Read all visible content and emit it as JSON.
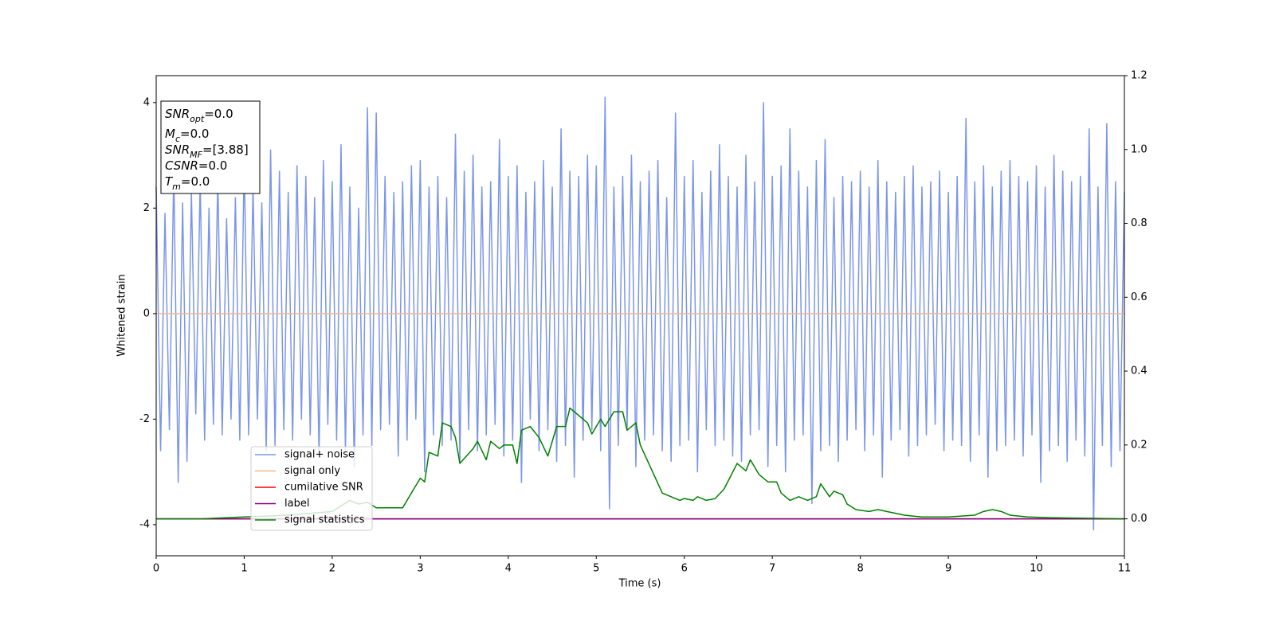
{
  "chart_data": {
    "type": "line",
    "xlabel": "Time (s)",
    "ylabel": "Whitened strain",
    "xlim": [
      0,
      11
    ],
    "xticks": [
      0,
      1,
      2,
      3,
      4,
      5,
      6,
      7,
      8,
      9,
      10,
      11
    ],
    "ylim": [
      -4.59,
      4.51
    ],
    "yticks": [
      -4,
      -2,
      0,
      2,
      4
    ],
    "y2lim": [
      -0.1,
      1.2
    ],
    "y2ticks": [
      {
        "value": 0,
        "label": "0.0"
      },
      {
        "value": 0.2,
        "label": "0.2"
      },
      {
        "value": 0.4,
        "label": "0.4"
      },
      {
        "value": 0.6,
        "label": "0.6"
      },
      {
        "value": 0.8,
        "label": "0.8"
      },
      {
        "value": 1.0,
        "label": "1.0"
      },
      {
        "value": 1.2,
        "label": "1.2"
      }
    ],
    "legend": "lower left",
    "annotation_lines": [
      {
        "base": "SNR",
        "sub": "opt",
        "rest": "=0.0"
      },
      {
        "base": "M",
        "sub": "c",
        "rest": "=0.0"
      },
      {
        "base": "SNR",
        "sub": "MF",
        "rest": "=[3.88]"
      },
      {
        "base": "CSNR",
        "rest": "=0.0"
      },
      {
        "base": "T",
        "sub": "m",
        "rest": "=0.0"
      }
    ],
    "series": [
      {
        "name": "signal+ noise",
        "color": "#7b96e8",
        "x": [
          0,
          0.05,
          0.1,
          0.15,
          0.2,
          0.25,
          0.3,
          0.35,
          0.4,
          0.45,
          0.5,
          0.55,
          0.6,
          0.65,
          0.7,
          0.75,
          0.8,
          0.85,
          0.9,
          0.95,
          1,
          1.05,
          1.1,
          1.15,
          1.2,
          1.25,
          1.3,
          1.35,
          1.4,
          1.45,
          1.5,
          1.55,
          1.6,
          1.65,
          1.7,
          1.75,
          1.8,
          1.85,
          1.9,
          1.95,
          2,
          2.05,
          2.1,
          2.15,
          2.2,
          2.25,
          2.3,
          2.35,
          2.4,
          2.45,
          2.5,
          2.55,
          2.6,
          2.65,
          2.7,
          2.75,
          2.8,
          2.85,
          2.9,
          2.95,
          3,
          3.05,
          3.1,
          3.15,
          3.2,
          3.25,
          3.3,
          3.35,
          3.4,
          3.45,
          3.5,
          3.55,
          3.6,
          3.65,
          3.7,
          3.75,
          3.8,
          3.85,
          3.9,
          3.95,
          4,
          4.05,
          4.1,
          4.15,
          4.2,
          4.25,
          4.3,
          4.35,
          4.4,
          4.45,
          4.5,
          4.55,
          4.6,
          4.65,
          4.7,
          4.75,
          4.8,
          4.85,
          4.9,
          4.95,
          5,
          5.05,
          5.1,
          5.15,
          5.2,
          5.25,
          5.3,
          5.35,
          5.4,
          5.45,
          5.5,
          5.55,
          5.6,
          5.65,
          5.7,
          5.75,
          5.8,
          5.85,
          5.9,
          5.95,
          6,
          6.05,
          6.1,
          6.15,
          6.2,
          6.25,
          6.3,
          6.35,
          6.4,
          6.45,
          6.5,
          6.55,
          6.6,
          6.65,
          6.7,
          6.75,
          6.8,
          6.85,
          6.9,
          6.95,
          7,
          7.05,
          7.1,
          7.15,
          7.2,
          7.25,
          7.3,
          7.35,
          7.4,
          7.45,
          7.5,
          7.55,
          7.6,
          7.65,
          7.7,
          7.75,
          7.8,
          7.85,
          7.9,
          7.95,
          8,
          8.05,
          8.1,
          8.15,
          8.2,
          8.25,
          8.3,
          8.35,
          8.4,
          8.45,
          8.5,
          8.55,
          8.6,
          8.65,
          8.7,
          8.75,
          8.8,
          8.85,
          8.9,
          8.95,
          9,
          9.05,
          9.1,
          9.15,
          9.2,
          9.25,
          9.3,
          9.35,
          9.4,
          9.45,
          9.5,
          9.55,
          9.6,
          9.65,
          9.7,
          9.75,
          9.8,
          9.85,
          9.9,
          9.95,
          10,
          10.05,
          10.1,
          10.15,
          10.2,
          10.25,
          10.3,
          10.35,
          10.4,
          10.45,
          10.5,
          10.55,
          10.6,
          10.65,
          10.7,
          10.75,
          10.8,
          10.85,
          10.9,
          10.95,
          11
        ],
        "values": [
          2.4,
          -2.6,
          1.9,
          -2.2,
          2.7,
          -3.2,
          2.1,
          -2.8,
          2.3,
          -1.9,
          2.5,
          -2.4,
          2.0,
          -2.1,
          2.6,
          -2.3,
          1.8,
          -2.0,
          2.2,
          -2.4,
          2.9,
          -2.3,
          2.4,
          -2.0,
          2.1,
          -2.6,
          3.1,
          -2.5,
          2.7,
          -2.2,
          2.3,
          -2.4,
          2.8,
          -2.0,
          2.6,
          -2.3,
          2.2,
          -2.7,
          2.9,
          -2.1,
          2.5,
          -2.4,
          3.2,
          -2.6,
          2.4,
          -2.9,
          2.0,
          -2.3,
          3.9,
          -2.5,
          3.8,
          -2.2,
          2.6,
          -2.1,
          2.3,
          -2.7,
          2.5,
          -2.4,
          2.8,
          -2.0,
          2.9,
          -3.0,
          2.4,
          -2.3,
          2.6,
          -2.5,
          2.2,
          -2.4,
          3.4,
          -2.8,
          2.7,
          -2.2,
          3.0,
          -2.6,
          2.4,
          -2.3,
          2.5,
          -2.1,
          3.3,
          -2.7,
          2.6,
          -2.4,
          2.8,
          -3.2,
          2.3,
          -2.0,
          2.5,
          -2.6,
          2.9,
          -2.2,
          2.4,
          -2.8,
          3.5,
          -2.5,
          2.7,
          -3.1,
          2.6,
          -2.4,
          3.0,
          -2.2,
          2.8,
          -2.6,
          4.1,
          -3.7,
          2.4,
          -2.5,
          2.6,
          -2.2,
          3.0,
          -2.9,
          2.5,
          -2.4,
          2.7,
          -2.3,
          2.9,
          -2.6,
          2.2,
          -2.8,
          3.8,
          -2.5,
          2.6,
          -2.4,
          2.9,
          -3.0,
          2.3,
          -2.2,
          2.7,
          -2.5,
          3.2,
          -2.4,
          2.6,
          -2.7,
          2.4,
          -2.8,
          3.0,
          -2.3,
          2.5,
          -2.2,
          4.0,
          -2.9,
          2.6,
          -2.5,
          2.8,
          -3.0,
          3.5,
          -2.4,
          2.7,
          -2.3,
          2.4,
          -3.6,
          2.9,
          -2.6,
          3.3,
          -2.5,
          2.2,
          -2.8,
          2.6,
          -2.4,
          2.5,
          -2.2,
          2.7,
          -2.6,
          2.4,
          -2.3,
          2.9,
          -3.1,
          2.5,
          -2.4,
          2.3,
          -2.2,
          2.6,
          -2.7,
          2.8,
          -2.5,
          2.4,
          -2.3,
          2.5,
          -2.1,
          2.7,
          -2.6,
          2.3,
          -2.4,
          2.6,
          -2.5,
          3.7,
          -2.8,
          2.5,
          -2.3,
          2.8,
          -3.1,
          2.4,
          -2.6,
          2.7,
          -2.5,
          2.9,
          -2.4,
          2.6,
          -2.7,
          2.5,
          -2.3,
          2.8,
          -3.2,
          2.4,
          -2.6,
          3.0,
          -2.5,
          2.7,
          -2.8,
          2.5,
          -2.4,
          2.6,
          -2.7,
          3.5,
          -4.1,
          2.4,
          -2.5,
          3.6,
          -2.9,
          2.5,
          -2.6,
          2.3
        ]
      },
      {
        "name": "signal only",
        "color": "#f2b98c",
        "x": [
          0,
          11
        ],
        "values": [
          0,
          0
        ]
      },
      {
        "name": "cumilative SNR",
        "color": "#ff0000",
        "axis": "y2",
        "x": [
          0,
          11
        ],
        "values": [
          0,
          0
        ]
      },
      {
        "name": "label",
        "color": "#800080",
        "axis": "y2",
        "x": [
          0,
          11
        ],
        "values": [
          0,
          0
        ]
      },
      {
        "name": "signal statistics",
        "color": "#008000",
        "axis": "y2",
        "x": [
          0,
          0.5,
          1.0,
          1.5,
          2.0,
          2.2,
          2.3,
          2.4,
          2.5,
          2.8,
          2.9,
          3.0,
          3.05,
          3.1,
          3.2,
          3.25,
          3.35,
          3.4,
          3.45,
          3.6,
          3.65,
          3.75,
          3.8,
          3.9,
          3.95,
          4.05,
          4.1,
          4.15,
          4.25,
          4.35,
          4.45,
          4.55,
          4.65,
          4.7,
          4.8,
          4.9,
          4.95,
          5.05,
          5.1,
          5.2,
          5.3,
          5.35,
          5.45,
          5.5,
          5.75,
          5.95,
          6.0,
          6.1,
          6.15,
          6.25,
          6.35,
          6.45,
          6.6,
          6.7,
          6.75,
          6.85,
          6.95,
          7.05,
          7.1,
          7.2,
          7.3,
          7.4,
          7.5,
          7.55,
          7.65,
          7.7,
          7.8,
          7.85,
          7.95,
          8.1,
          8.2,
          8.3,
          8.4,
          8.5,
          8.7,
          9.0,
          9.3,
          9.4,
          9.5,
          9.6,
          9.7,
          9.9,
          10.2,
          11
        ],
        "values": [
          0,
          0,
          0.005,
          0.01,
          0.02,
          0.05,
          0.04,
          0.045,
          0.03,
          0.03,
          0.07,
          0.11,
          0.1,
          0.18,
          0.17,
          0.26,
          0.25,
          0.22,
          0.15,
          0.19,
          0.21,
          0.16,
          0.21,
          0.19,
          0.2,
          0.2,
          0.15,
          0.24,
          0.25,
          0.22,
          0.17,
          0.25,
          0.25,
          0.3,
          0.28,
          0.26,
          0.23,
          0.27,
          0.25,
          0.29,
          0.29,
          0.24,
          0.26,
          0.2,
          0.07,
          0.05,
          0.055,
          0.05,
          0.06,
          0.05,
          0.055,
          0.08,
          0.15,
          0.13,
          0.16,
          0.12,
          0.1,
          0.1,
          0.07,
          0.05,
          0.06,
          0.05,
          0.06,
          0.095,
          0.06,
          0.075,
          0.065,
          0.04,
          0.025,
          0.02,
          0.025,
          0.02,
          0.015,
          0.01,
          0.005,
          0.005,
          0.01,
          0.02,
          0.025,
          0.02,
          0.01,
          0.005,
          0.003,
          0
        ]
      }
    ]
  }
}
